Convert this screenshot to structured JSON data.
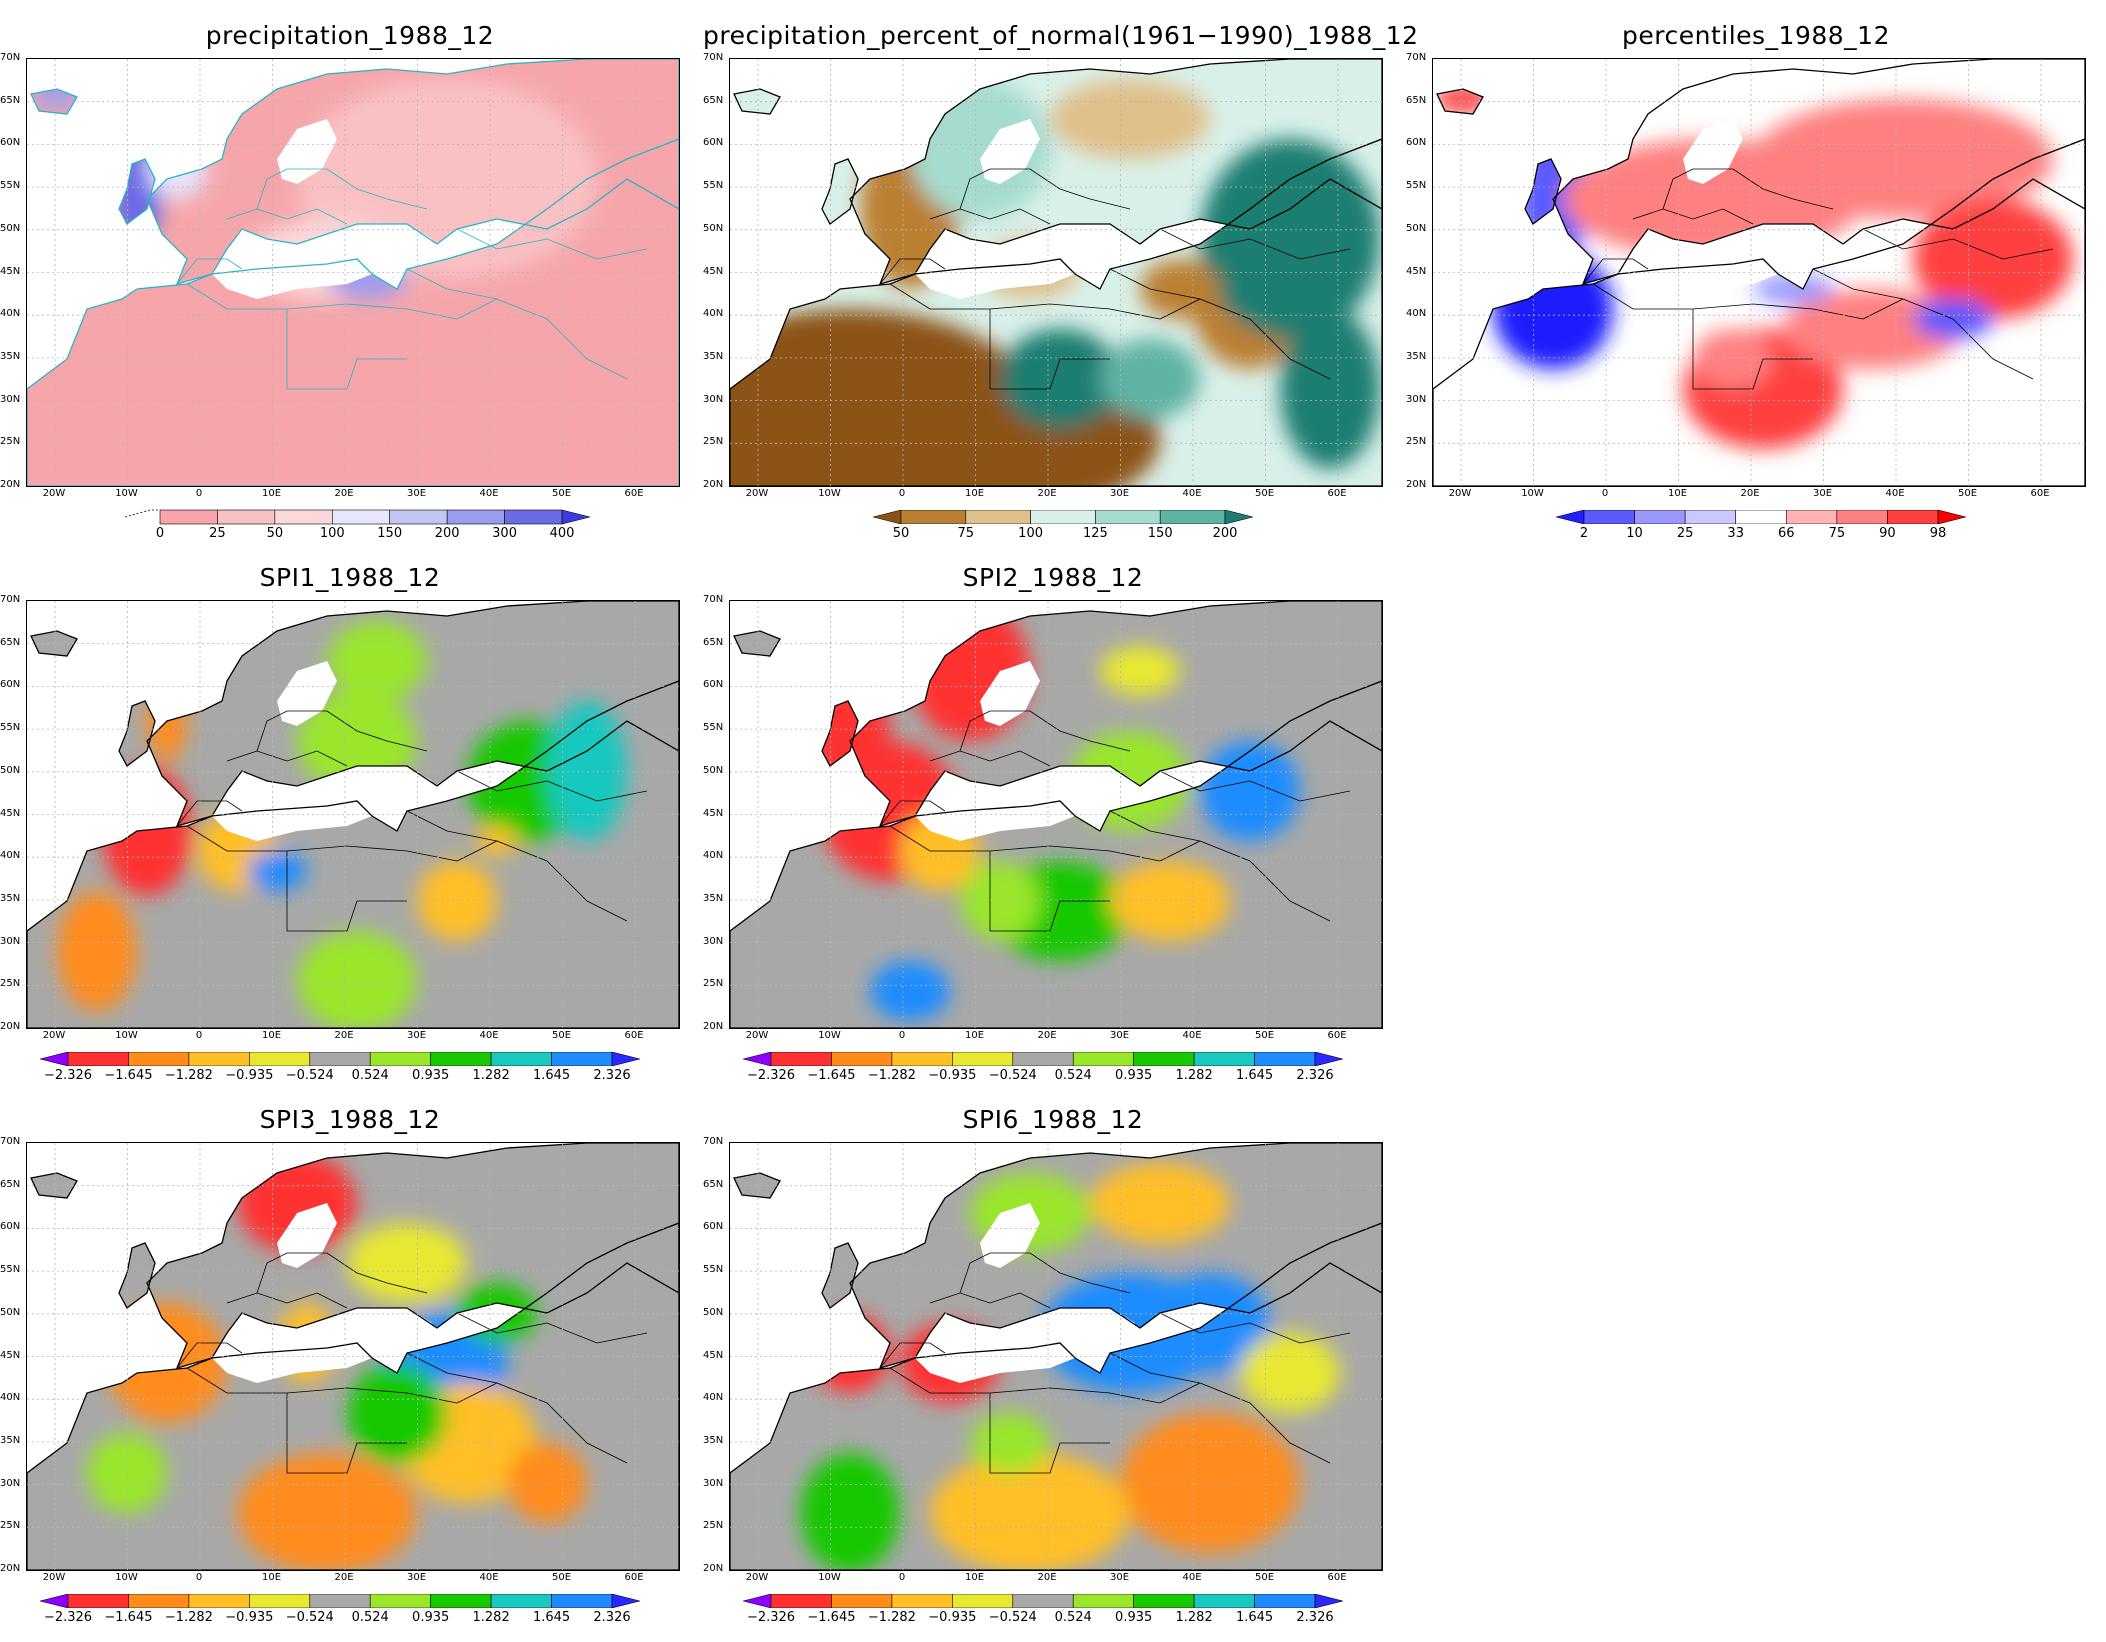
{
  "map_data": {
    "type": "map_panels",
    "lat_ticks": [
      "70N",
      "65N",
      "60N",
      "55N",
      "50N",
      "45N",
      "40N",
      "35N",
      "30N",
      "25N",
      "20N"
    ],
    "lon_ticks": [
      "20W",
      "10W",
      "0",
      "10E",
      "20E",
      "30E",
      "40E",
      "50E",
      "60E"
    ],
    "panels": [
      {
        "id": "precip",
        "title": "precipitation_1988_12",
        "legend_labels": [
          "0",
          "25",
          "50",
          "100",
          "150",
          "200",
          "300",
          "400"
        ],
        "legend_colors": [
          "#f6a6ab",
          "#f9c1c4",
          "#fbd9db",
          "#e6e6ff",
          "#c2c6f5",
          "#9c9cee",
          "#6b6be6",
          "#3a3add"
        ]
      },
      {
        "id": "pct",
        "title": "precipitation_percent_of_normal(1961−1990)_1988_12",
        "legend_labels": [
          "50",
          "75",
          "100",
          "125",
          "150",
          "200"
        ],
        "legend_colors": [
          "#8c5212",
          "#bb7f33",
          "#e0c08a",
          "#d9f0ea",
          "#a6dccf",
          "#5fb3a3",
          "#1f7e71"
        ]
      },
      {
        "id": "perc",
        "title": "percentiles_1988_12",
        "legend_labels": [
          "2",
          "10",
          "25",
          "33",
          "66",
          "75",
          "90",
          "98"
        ],
        "legend_colors": [
          "#1f1fff",
          "#5a5aff",
          "#9898ff",
          "#c9c9ff",
          "#ffffff",
          "#ffb3b3",
          "#ff8080",
          "#ff4040",
          "#ff0000"
        ]
      },
      {
        "id": "spi1",
        "title": "SPI1_1988_12",
        "legend_labels": [
          "−2.326",
          "−1.645",
          "−1.282",
          "−0.935",
          "−0.524",
          "0.524",
          "0.935",
          "1.282",
          "1.645",
          "2.326"
        ],
        "legend_colors": [
          "#8b00ff",
          "#ff3030",
          "#ff8c1a",
          "#ffbf26",
          "#e8e832",
          "#a8a8a8",
          "#99e62a",
          "#19c800",
          "#19c8be",
          "#1e8cff",
          "#2828ff"
        ]
      },
      {
        "id": "spi2",
        "title": "SPI2_1988_12",
        "legend_labels": [
          "−2.326",
          "−1.645",
          "−1.282",
          "−0.935",
          "−0.524",
          "0.524",
          "0.935",
          "1.282",
          "1.645",
          "2.326"
        ],
        "legend_colors": [
          "#8b00ff",
          "#ff3030",
          "#ff8c1a",
          "#ffbf26",
          "#e8e832",
          "#a8a8a8",
          "#99e62a",
          "#19c800",
          "#19c8be",
          "#1e8cff",
          "#2828ff"
        ]
      },
      {
        "id": "spi3",
        "title": "SPI3_1988_12",
        "legend_labels": [
          "−2.326",
          "−1.645",
          "−1.282",
          "−0.935",
          "−0.524",
          "0.524",
          "0.935",
          "1.282",
          "1.645",
          "2.326"
        ],
        "legend_colors": [
          "#8b00ff",
          "#ff3030",
          "#ff8c1a",
          "#ffbf26",
          "#e8e832",
          "#a8a8a8",
          "#99e62a",
          "#19c800",
          "#19c8be",
          "#1e8cff",
          "#2828ff"
        ]
      },
      {
        "id": "spi6",
        "title": "SPI6_1988_12",
        "legend_labels": [
          "−2.326",
          "−1.645",
          "−1.282",
          "−0.935",
          "−0.524",
          "0.524",
          "0.935",
          "1.282",
          "1.645",
          "2.326"
        ],
        "legend_colors": [
          "#8b00ff",
          "#ff3030",
          "#ff8c1a",
          "#ffbf26",
          "#e8e832",
          "#a8a8a8",
          "#99e62a",
          "#19c800",
          "#19c8be",
          "#1e8cff",
          "#2828ff"
        ]
      }
    ]
  }
}
